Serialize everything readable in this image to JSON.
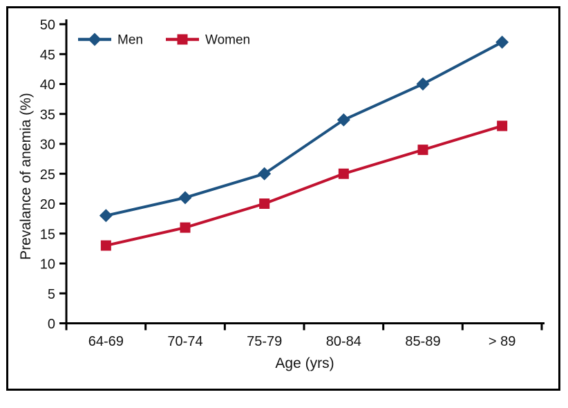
{
  "figure": {
    "background": "#ffffff",
    "border_color": "#000000",
    "axis_color": "#000000",
    "text_color": "#131313"
  },
  "chart_data": {
    "type": "line",
    "title": "",
    "xlabel": "Age (yrs)",
    "ylabel": "Prevalance of anemia (%)",
    "categories": [
      "64-69",
      "70-74",
      "75-79",
      "80-84",
      "85-89",
      "> 89"
    ],
    "series": [
      {
        "name": "Men",
        "color": "#1d5382",
        "marker": "diamond",
        "values": [
          18,
          21,
          25,
          34,
          40,
          47
        ]
      },
      {
        "name": "Women",
        "color": "#c11230",
        "marker": "square",
        "values": [
          13,
          16,
          20,
          25,
          29,
          33
        ]
      }
    ],
    "y_axis": {
      "min": 0,
      "max": 50,
      "step": 5,
      "tick_labels": [
        "0",
        "5",
        "10",
        "15",
        "20",
        "25",
        "30",
        "35",
        "40",
        "45",
        "50"
      ]
    },
    "legend": {
      "position": "top-left",
      "entries": [
        "Men",
        "Women"
      ]
    },
    "grid": false,
    "ylim": [
      0,
      50
    ]
  }
}
